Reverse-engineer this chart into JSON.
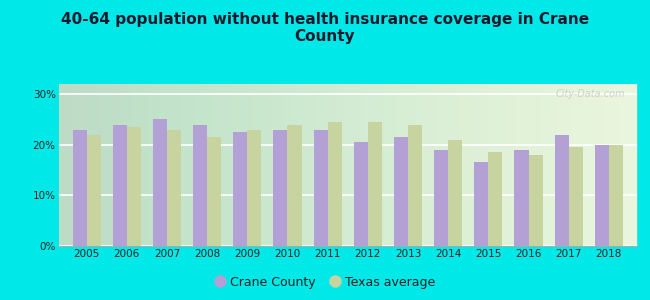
{
  "title": "40-64 population without health insurance coverage in Crane\nCounty",
  "years": [
    2005,
    2006,
    2007,
    2008,
    2009,
    2010,
    2011,
    2012,
    2013,
    2014,
    2015,
    2016,
    2017,
    2018
  ],
  "crane_county": [
    23.0,
    24.0,
    25.0,
    24.0,
    22.5,
    23.0,
    23.0,
    20.5,
    21.5,
    19.0,
    16.5,
    19.0,
    22.0,
    20.0
  ],
  "texas_avg": [
    22.0,
    23.5,
    23.0,
    21.5,
    23.0,
    24.0,
    24.5,
    24.5,
    24.0,
    21.0,
    18.5,
    18.0,
    19.5,
    20.0
  ],
  "crane_color": "#b3a0d4",
  "texas_color": "#c8d4a0",
  "background_color": "#00e8e8",
  "ylim": [
    0,
    32
  ],
  "yticks": [
    0,
    10,
    20,
    30
  ],
  "bar_width": 0.35,
  "legend_crane": "Crane County",
  "legend_texas": "Texas average",
  "title_fontsize": 11,
  "watermark": "City-Data.com"
}
